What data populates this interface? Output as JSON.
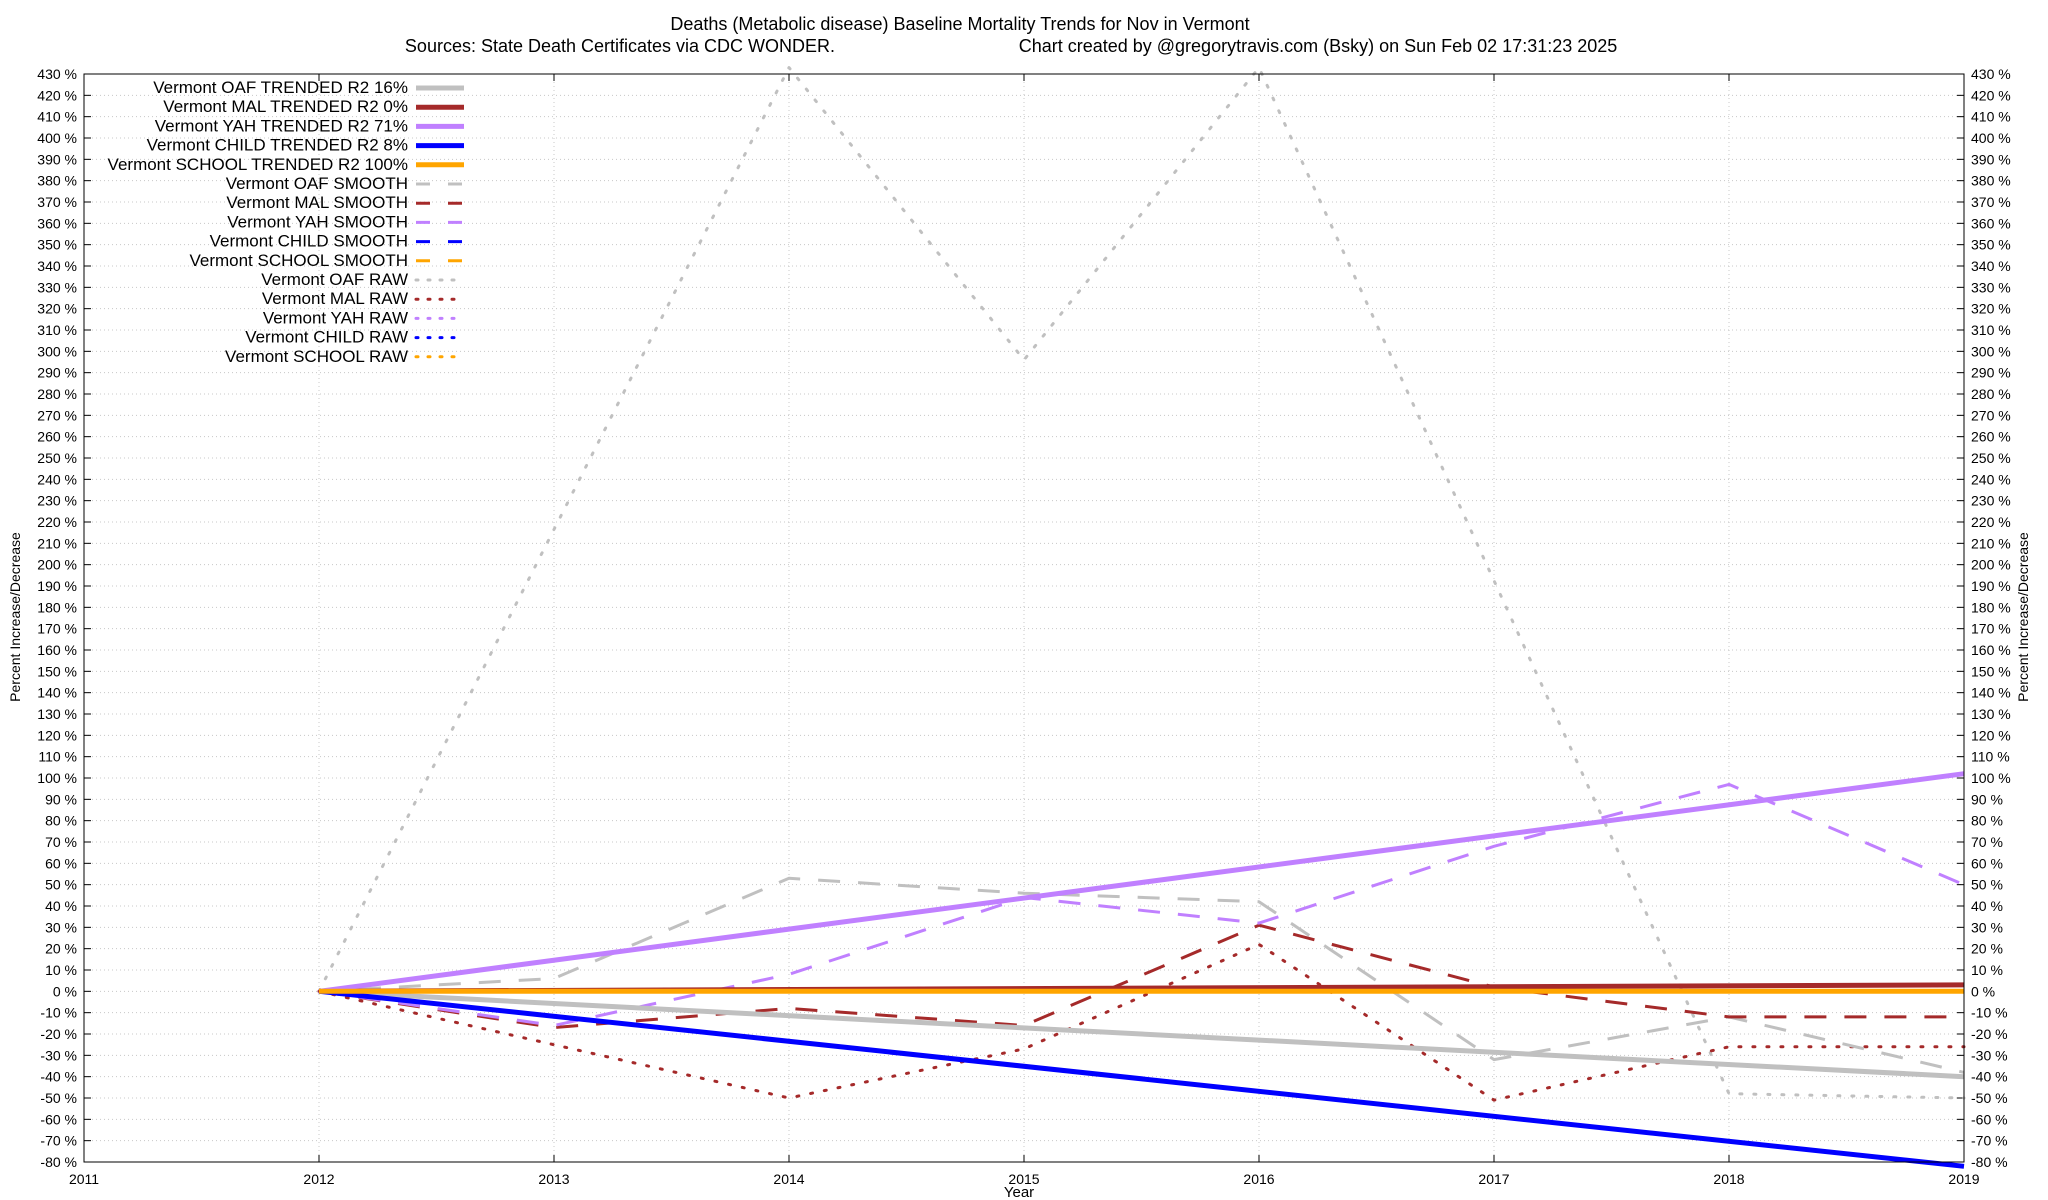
{
  "chart_data": {
    "type": "line",
    "title": "Deaths (Metabolic disease)  Baseline Mortality Trends for Nov in Vermont",
    "subtitle_left": "Sources: State Death Certificates via CDC WONDER.",
    "subtitle_right": "Chart created by @gregorytravis.com (Bsky) on Sun Feb 02 17:31:23 2025",
    "xlabel": "Year",
    "ylabel": "Percent Increase/Decrease",
    "y2label": "Percent Increase/Decrease",
    "xlim": [
      2011,
      2019
    ],
    "ylim": [
      -80,
      430
    ],
    "x_ticks": [
      2011,
      2012,
      2013,
      2014,
      2015,
      2016,
      2017,
      2018,
      2019
    ],
    "y_tick_step": 10,
    "y_tick_suffix": " %",
    "grid": true,
    "legend_position": "top-left",
    "series": [
      {
        "name": "Vermont OAF TRENDED R2  16%",
        "style": "trend",
        "color": "#c0c0c0",
        "x": [
          2012,
          2019
        ],
        "y": [
          0,
          -40
        ]
      },
      {
        "name": "Vermont MAL TRENDED R2   0%",
        "style": "trend",
        "color": "#a52a2a",
        "x": [
          2012,
          2019
        ],
        "y": [
          0,
          3
        ]
      },
      {
        "name": "Vermont YAH TRENDED R2  71%",
        "style": "trend",
        "color": "#c080ff",
        "x": [
          2012,
          2019
        ],
        "y": [
          0,
          102
        ]
      },
      {
        "name": "Vermont CHILD TRENDED R2   8%",
        "style": "trend",
        "color": "#0000ff",
        "x": [
          2012,
          2019
        ],
        "y": [
          0,
          -82
        ]
      },
      {
        "name": "Vermont SCHOOL TRENDED R2 100%",
        "style": "trend",
        "color": "#ffa500",
        "x": [
          2012,
          2019
        ],
        "y": [
          0,
          0
        ]
      },
      {
        "name": "Vermont OAF SMOOTH",
        "style": "smooth",
        "color": "#c0c0c0",
        "x": [
          2012,
          2013,
          2014,
          2015,
          2016,
          2017,
          2018,
          2019
        ],
        "y": [
          0,
          6,
          53,
          46,
          42,
          -32,
          -12,
          -38
        ]
      },
      {
        "name": "Vermont MAL SMOOTH",
        "style": "smooth",
        "color": "#a52a2a",
        "x": [
          2012,
          2013,
          2014,
          2015,
          2016,
          2017,
          2018,
          2019
        ],
        "y": [
          0,
          -17,
          -8,
          -16,
          31,
          2,
          -12,
          -12
        ]
      },
      {
        "name": "Vermont YAH SMOOTH",
        "style": "smooth",
        "color": "#c080ff",
        "x": [
          2012,
          2013,
          2014,
          2015,
          2016,
          2017,
          2018,
          2019
        ],
        "y": [
          0,
          -16,
          8,
          44,
          32,
          68,
          97,
          50
        ]
      },
      {
        "name": "Vermont CHILD SMOOTH",
        "style": "smooth",
        "color": "#0000ff",
        "x": [],
        "y": []
      },
      {
        "name": "Vermont SCHOOL SMOOTH",
        "style": "smooth",
        "color": "#ffa500",
        "x": [],
        "y": []
      },
      {
        "name": "Vermont OAF RAW",
        "style": "raw",
        "color": "#c0c0c0",
        "x": [
          2012,
          2014,
          2015,
          2016,
          2018,
          2019
        ],
        "y": [
          0,
          433,
          296,
          433,
          -48,
          -50
        ]
      },
      {
        "name": "Vermont MAL RAW",
        "style": "raw",
        "color": "#a52a2a",
        "x": [
          2012,
          2013,
          2014,
          2015,
          2016,
          2017,
          2018,
          2019
        ],
        "y": [
          0,
          -25,
          -50,
          -27,
          22,
          -51,
          -26,
          -26
        ]
      },
      {
        "name": "Vermont YAH RAW",
        "style": "raw",
        "color": "#c080ff",
        "x": [],
        "y": []
      },
      {
        "name": "Vermont CHILD RAW",
        "style": "raw",
        "color": "#0000ff",
        "x": [],
        "y": []
      },
      {
        "name": "Vermont SCHOOL RAW",
        "style": "raw",
        "color": "#ffa500",
        "x": [],
        "y": []
      }
    ]
  }
}
